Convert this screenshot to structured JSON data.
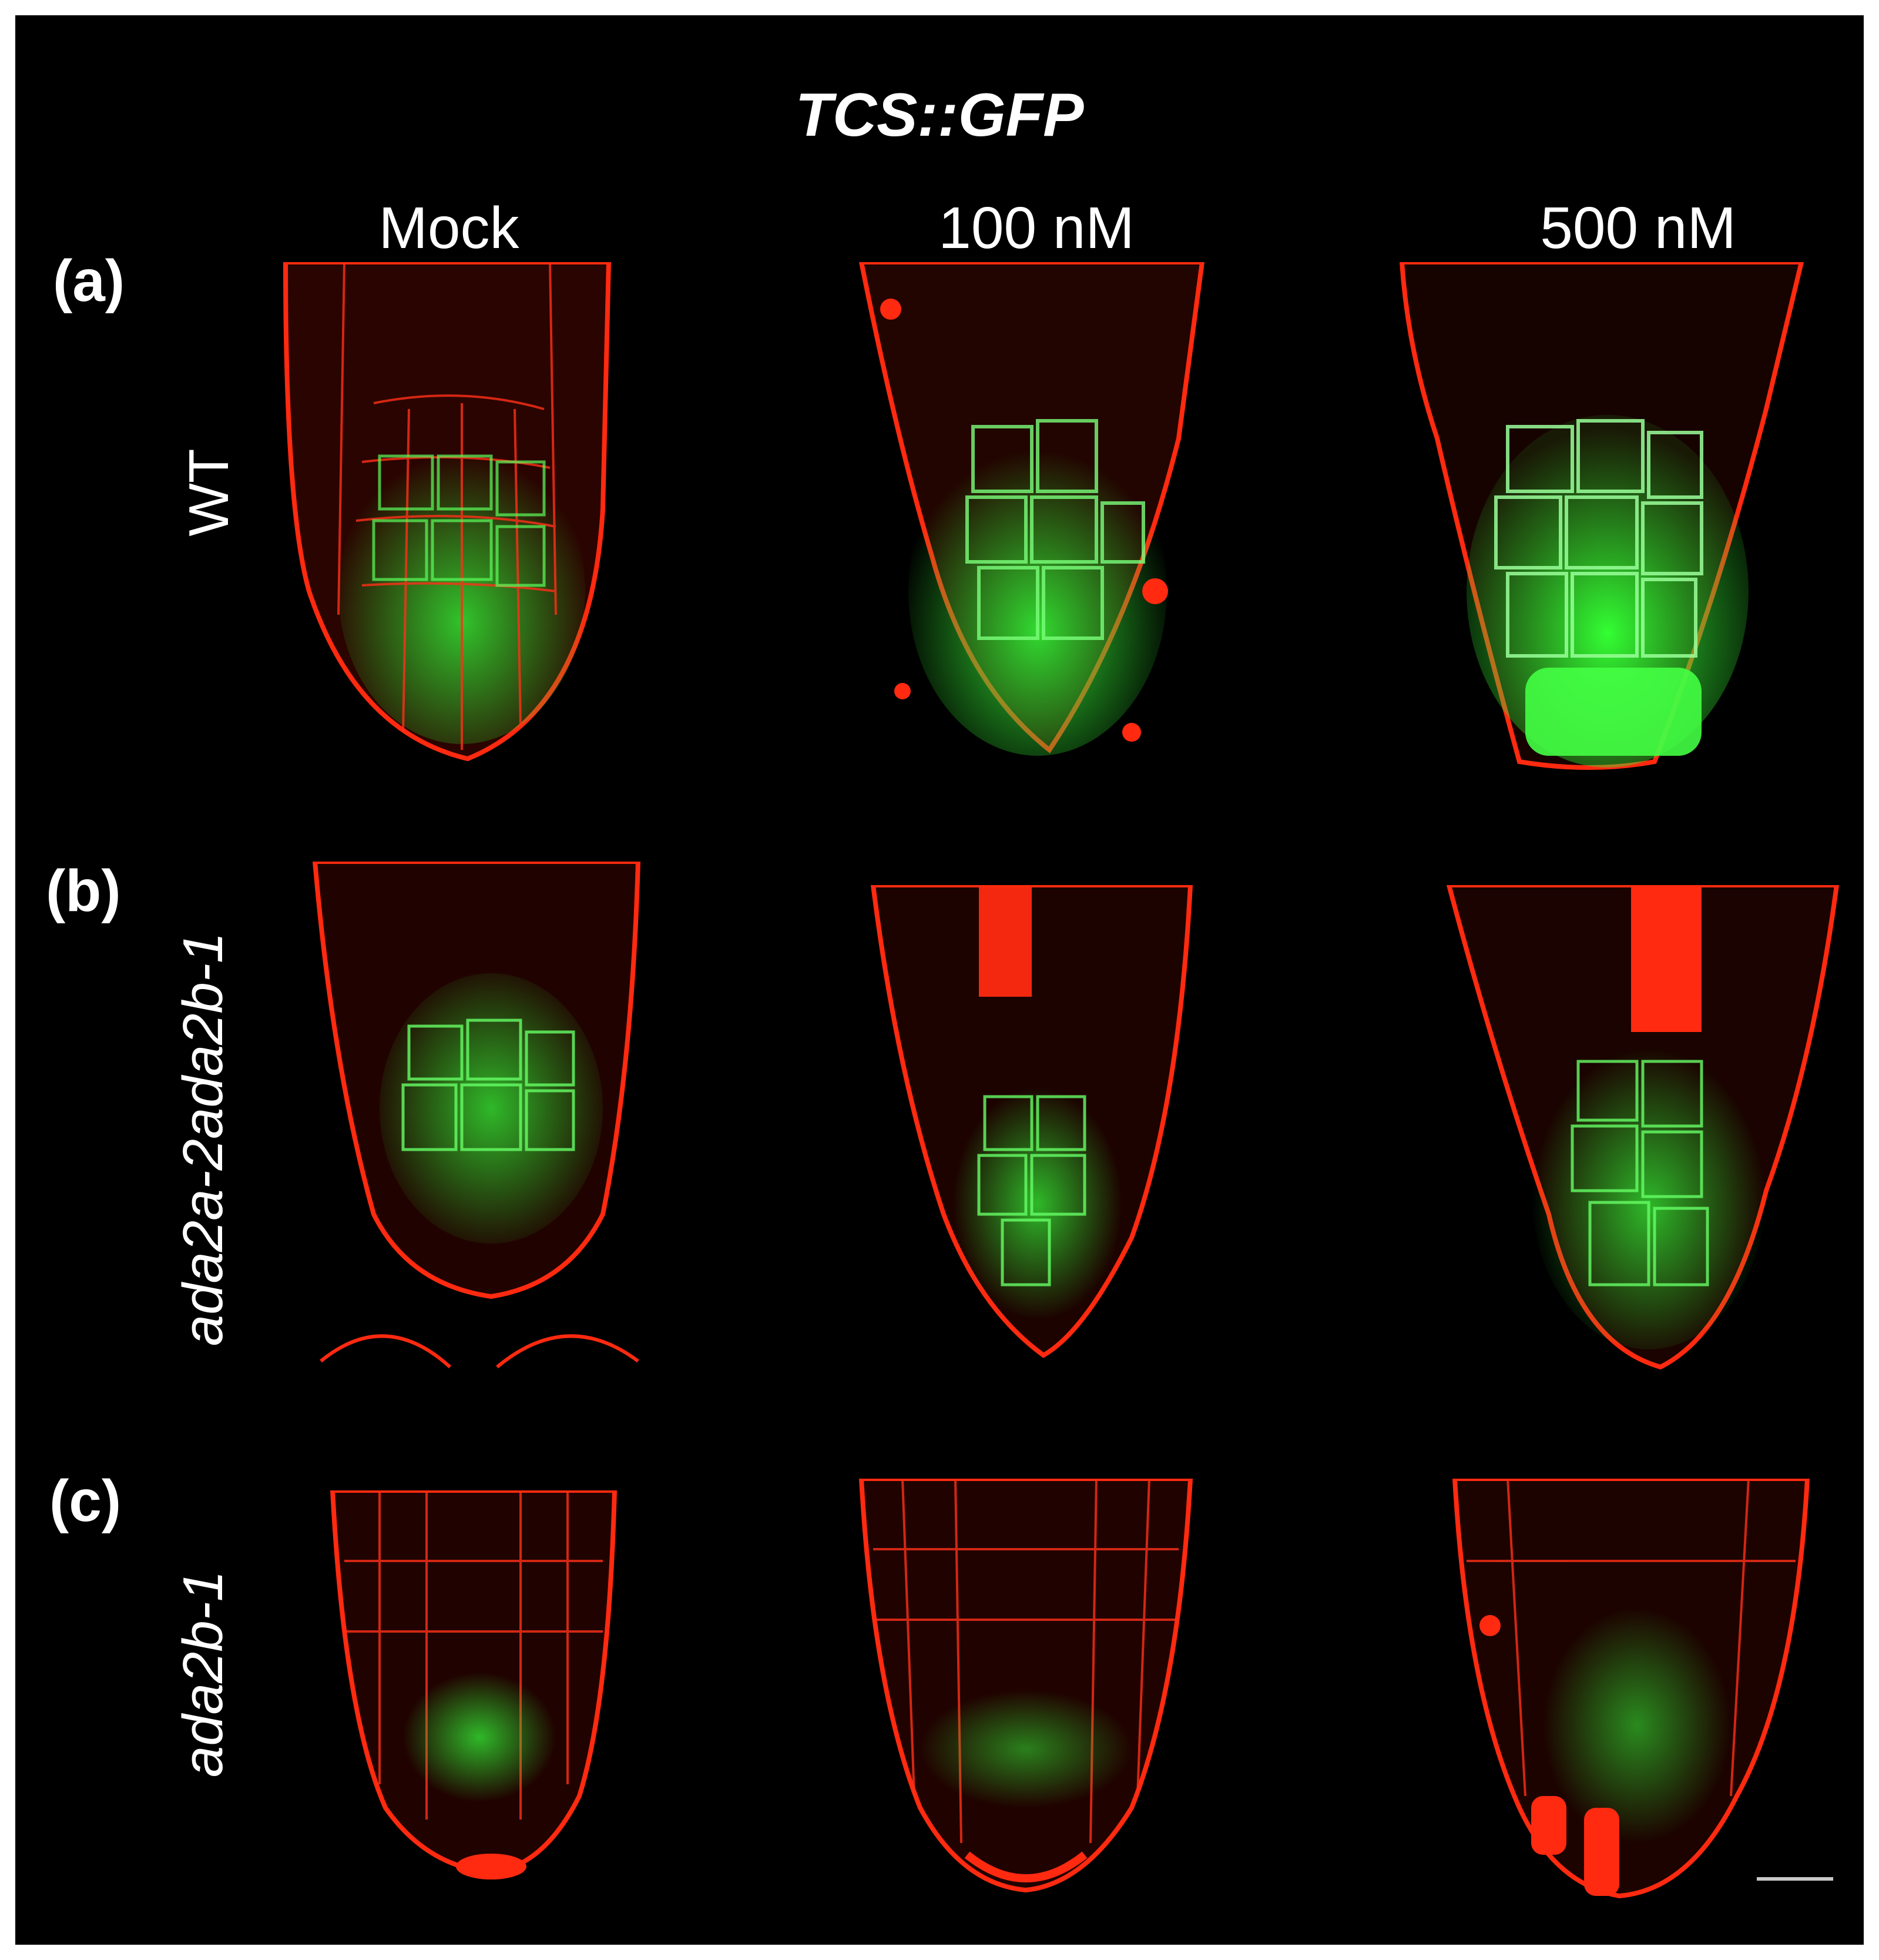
{
  "figure": {
    "title": "TCS::GFP",
    "columns": [
      "Mock",
      "100 nM",
      "500 nM"
    ],
    "rows": [
      {
        "label": "(a)",
        "genotype": "WT"
      },
      {
        "label": "(b)",
        "genotype": "ada2a-2ada2b-1"
      },
      {
        "label": "(c)",
        "genotype": "ada2b-1"
      }
    ],
    "colors": {
      "background": "#000000",
      "membrane": "#ff2a10",
      "gfp": "#33e533"
    }
  },
  "panels": [
    {
      "row": "WT",
      "column": "Mock"
    },
    {
      "row": "WT",
      "column": "100 nM"
    },
    {
      "row": "WT",
      "column": "500 nM"
    },
    {
      "row": "ada2a-2ada2b-1",
      "column": "Mock"
    },
    {
      "row": "ada2a-2ada2b-1",
      "column": "100 nM"
    },
    {
      "row": "ada2a-2ada2b-1",
      "column": "500 nM"
    },
    {
      "row": "ada2b-1",
      "column": "Mock"
    },
    {
      "row": "ada2b-1",
      "column": "100 nM"
    },
    {
      "row": "ada2b-1",
      "column": "500 nM"
    }
  ]
}
